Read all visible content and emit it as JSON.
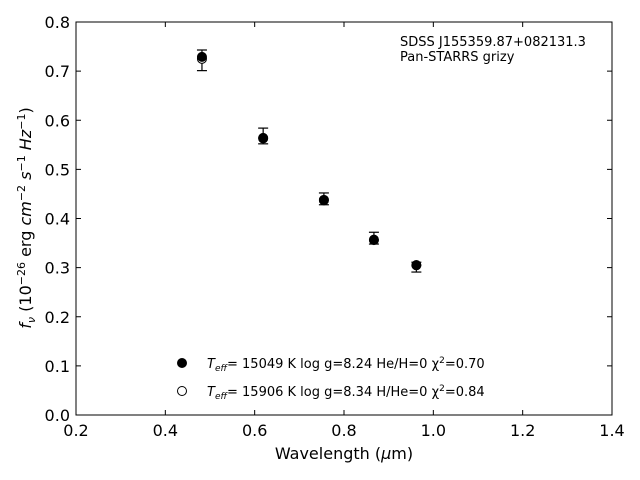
{
  "chart_data": {
    "type": "scatter",
    "title": "",
    "xlabel_parts": [
      "Wavelength (",
      "μ",
      "m)"
    ],
    "ylabel_parts": [
      "f",
      "ν",
      " (10",
      "−26",
      " erg ",
      "cm",
      "−2",
      " ",
      "s",
      "−1",
      " ",
      "Hz",
      "−1",
      ")"
    ],
    "xlim": [
      0.2,
      1.4
    ],
    "ylim": [
      0.0,
      0.8
    ],
    "xticks": [
      "0.2",
      "0.4",
      "0.6",
      "0.8",
      "1.0",
      "1.2",
      "1.4"
    ],
    "yticks": [
      "0.0",
      "0.1",
      "0.2",
      "0.3",
      "0.4",
      "0.5",
      "0.6",
      "0.7",
      "0.8"
    ],
    "annotation": [
      "SDSS J155359.87+082131.3",
      "Pan-STARRS grizy"
    ],
    "legend_position": "lower-center",
    "observed": {
      "x": [
        0.482,
        0.619,
        0.755,
        0.867,
        0.962
      ],
      "y": [
        0.722,
        0.568,
        0.44,
        0.36,
        0.301
      ],
      "err": [
        0.021,
        0.016,
        0.012,
        0.012,
        0.01
      ]
    },
    "series": [
      {
        "marker": "filled",
        "x": [
          0.482,
          0.619,
          0.755,
          0.867,
          0.962
        ],
        "y": [
          0.729,
          0.564,
          0.437,
          0.356,
          0.305
        ],
        "label_parts": [
          "T",
          "eff",
          "= 15049 K  log g=8.24  He/H=0  χ",
          "2",
          "=0.70"
        ]
      },
      {
        "marker": "open",
        "x": [
          0.482,
          0.619,
          0.755,
          0.867,
          0.962
        ],
        "y": [
          0.725,
          0.563,
          0.438,
          0.357,
          0.305
        ],
        "label_parts": [
          "T",
          "eff",
          "= 15906 K  log g=8.34  H/He=0  χ",
          "2",
          "=0.84"
        ]
      }
    ]
  }
}
